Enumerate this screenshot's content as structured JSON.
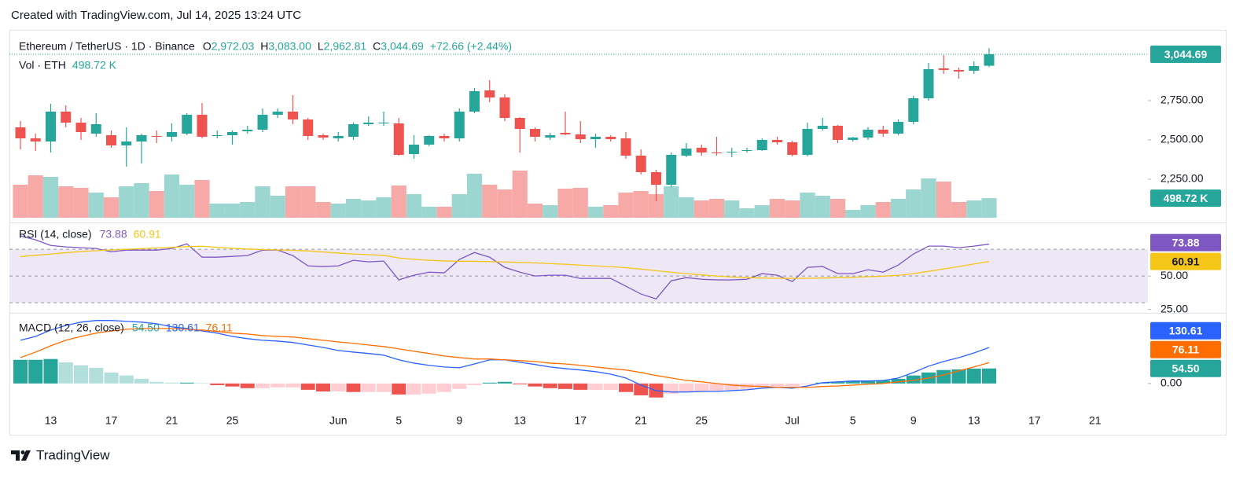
{
  "header": {
    "created": "Created with TradingView.com, Jul 14, 2025 13:24 UTC",
    "brand": "TradingView"
  },
  "chart_data": [
    {
      "type": "candlestick",
      "title": "Ethereum / TetherUS · 1D · Binance",
      "ohlc_keys": [
        "O",
        "H",
        "L",
        "C"
      ],
      "change": "+72.66 (+2.44%)",
      "volume_title": "Vol · ETH",
      "categories": [
        null,
        null,
        "13",
        null,
        null,
        null,
        "17",
        null,
        null,
        null,
        "21",
        null,
        null,
        null,
        "25",
        null,
        null,
        null,
        null,
        null,
        null,
        "Jun",
        null,
        null,
        null,
        "5",
        null,
        null,
        null,
        "9",
        null,
        null,
        null,
        "13",
        null,
        null,
        null,
        "17",
        null,
        null,
        null,
        "21",
        null,
        null,
        null,
        "25",
        null,
        null,
        null,
        null,
        null,
        "Jul",
        null,
        null,
        null,
        "5",
        null,
        null,
        null,
        "9",
        null,
        null,
        null,
        "13",
        null,
        null,
        null,
        "17",
        null,
        null,
        null,
        "21",
        null,
        null,
        null
      ],
      "open": {
        "values": [
          2580,
          2510,
          2490,
          2680,
          2610,
          2540,
          2530,
          2465,
          2490,
          2525,
          2520,
          2540,
          2660,
          2525,
          2530,
          2555,
          2565,
          2660,
          2680,
          2630,
          2530,
          2510,
          2520,
          2600,
          2605,
          2605,
          2410,
          2470,
          2525,
          2510,
          2680,
          2815,
          2770,
          2640,
          2570,
          2515,
          2545,
          2535,
          2505,
          2520,
          2510,
          2400,
          2295,
          2215,
          2400,
          2450,
          2420,
          2420,
          2430,
          2435,
          2500,
          2485,
          2405,
          2570,
          2590,
          2500,
          2515,
          2565,
          2540,
          2615,
          2765,
          2955,
          2945,
          2940,
          2972.03,
          null,
          null,
          null,
          null,
          null,
          null,
          null,
          null,
          null,
          null
        ],
        "value_labels": {
          "64": "2,972.03"
        }
      },
      "high": {
        "values": [
          2620,
          2540,
          2730,
          2720,
          2640,
          2670,
          2560,
          2580,
          2540,
          2560,
          2605,
          2670,
          2735,
          2560,
          2560,
          2590,
          2700,
          2700,
          2785,
          2640,
          2540,
          2550,
          2610,
          2650,
          2680,
          2640,
          2530,
          2530,
          2540,
          2700,
          2830,
          2880,
          2790,
          2645,
          2580,
          2545,
          2680,
          2620,
          2540,
          2530,
          2550,
          2440,
          2310,
          2420,
          2480,
          2470,
          2520,
          2450,
          2450,
          2510,
          2520,
          2495,
          2610,
          2640,
          2595,
          2520,
          2580,
          2590,
          2630,
          2780,
          2990,
          3040,
          2960,
          3000,
          3083,
          null,
          null,
          null,
          null,
          null,
          null,
          null,
          null,
          null,
          null
        ],
        "value_labels": {
          "64": "3,083.00"
        }
      },
      "low": {
        "values": [
          2440,
          2430,
          2420,
          2580,
          2500,
          2520,
          2450,
          2330,
          2350,
          2480,
          2490,
          2530,
          2510,
          2510,
          2470,
          2540,
          2550,
          2640,
          2600,
          2500,
          2500,
          2490,
          2500,
          2590,
          2590,
          2400,
          2380,
          2460,
          2490,
          2490,
          2670,
          2740,
          2620,
          2420,
          2490,
          2500,
          2530,
          2480,
          2450,
          2490,
          2380,
          2280,
          2110,
          2200,
          2390,
          2400,
          2400,
          2390,
          2420,
          2430,
          2470,
          2395,
          2395,
          2560,
          2480,
          2490,
          2500,
          2520,
          2530,
          2600,
          2750,
          2920,
          2890,
          2920,
          2962.81,
          null,
          null,
          null,
          null,
          null,
          null,
          null,
          null,
          null,
          null
        ],
        "value_labels": {
          "64": "2,962.81"
        }
      },
      "close": {
        "values": [
          2510,
          2490,
          2680,
          2610,
          2550,
          2600,
          2465,
          2490,
          2530,
          2520,
          2550,
          2660,
          2520,
          2530,
          2550,
          2565,
          2660,
          2680,
          2630,
          2525,
          2515,
          2525,
          2600,
          2610,
          2610,
          2405,
          2470,
          2525,
          2510,
          2680,
          2810,
          2770,
          2640,
          2570,
          2520,
          2530,
          2535,
          2505,
          2520,
          2505,
          2400,
          2295,
          2215,
          2405,
          2445,
          2420,
          2415,
          2425,
          2435,
          2500,
          2485,
          2405,
          2570,
          2590,
          2500,
          2515,
          2565,
          2540,
          2615,
          2765,
          2950,
          2945,
          2935,
          2970,
          3044.69,
          null,
          null,
          null,
          null,
          null,
          null,
          null,
          null,
          null,
          null
        ],
        "value_labels": {
          "64": "3,044.69"
        }
      },
      "volume": {
        "values": [
          840000,
          1080000,
          1040000,
          800000,
          760000,
          640000,
          520000,
          800000,
          880000,
          680000,
          1100000,
          840000,
          960000,
          360000,
          360000,
          400000,
          800000,
          560000,
          800000,
          800000,
          400000,
          360000,
          480000,
          440000,
          520000,
          820000,
          600000,
          280000,
          280000,
          600000,
          1120000,
          840000,
          720000,
          1200000,
          360000,
          320000,
          740000,
          760000,
          280000,
          320000,
          640000,
          680000,
          600000,
          800000,
          520000,
          440000,
          480000,
          440000,
          240000,
          320000,
          480000,
          440000,
          640000,
          560000,
          480000,
          200000,
          320000,
          400000,
          480000,
          720000,
          1000000,
          920000,
          400000,
          440000,
          498720,
          null,
          null,
          null,
          null,
          null,
          null,
          null,
          null,
          null,
          null
        ],
        "value_labels": {
          "64": "498.72 K"
        }
      },
      "ylim": [
        2005,
        3190
      ],
      "yticks": [
        {
          "value": 2250,
          "label": "2,250.00"
        },
        {
          "value": 2500,
          "label": "2,500.00"
        },
        {
          "value": 2750,
          "label": "2,750.00"
        }
      ],
      "up_color": "#26a69a",
      "down_color": "#ef5350",
      "volume_up_color": "#9cd6d0",
      "volume_down_color": "#f7a9a7"
    },
    {
      "type": "line",
      "title": "RSI (14, close)",
      "series": [
        {
          "color": "#7e57c2",
          "values": [
            80,
            77.1,
            72.9,
            71.8,
            71.2,
            70.6,
            68.2,
            69.4,
            69.4,
            69.4,
            70.6,
            74.1,
            64.1,
            64.1,
            64.7,
            65.3,
            69.4,
            69.4,
            65.3,
            57.6,
            57.1,
            57.6,
            61.8,
            60.6,
            61.2,
            47.1,
            50.6,
            52.9,
            52.4,
            62.4,
            67.6,
            64.1,
            56.5,
            52.9,
            50.0,
            50.6,
            50.6,
            48.2,
            48.2,
            48.2,
            42.4,
            36.5,
            32.9,
            46.5,
            48.8,
            47.6,
            47.1,
            47.1,
            47.6,
            51.8,
            50.6,
            45.9,
            56.5,
            57.1,
            51.8,
            51.8,
            54.7,
            52.9,
            58.2,
            66.5,
            72.4,
            72.4,
            71.2,
            72.4,
            73.88,
            null,
            null,
            null,
            null,
            null,
            null,
            null,
            null,
            null,
            null
          ]
        },
        {
          "color": "#f5c518",
          "values": [
            64.5,
            65.5,
            66.5,
            67.5,
            68.3,
            69,
            69.5,
            70,
            70.5,
            71,
            71.5,
            72,
            72.3,
            71.5,
            70.8,
            70.2,
            69.8,
            69.5,
            69.2,
            68.8,
            68,
            67.2,
            66.5,
            66,
            65.5,
            63.5,
            62.5,
            61.8,
            61.3,
            61,
            61,
            60.8,
            60.5,
            60.2,
            59.8,
            59.3,
            58.8,
            58.2,
            57.6,
            57,
            56.2,
            55.2,
            54,
            52.8,
            51.8,
            50.8,
            50,
            49.3,
            48.8,
            48.5,
            48.3,
            48.2,
            48.3,
            48.5,
            48.8,
            49.1,
            49.5,
            49.9,
            50.5,
            51.8,
            53.5,
            55.3,
            57.1,
            59,
            60.91,
            null,
            null,
            null,
            null,
            null,
            null,
            null,
            null,
            null,
            null
          ]
        }
      ],
      "ylim": [
        23,
        86
      ],
      "yticks": [
        {
          "value": 25,
          "label": "25.00"
        },
        {
          "value": 50,
          "label": "50.00"
        }
      ],
      "levels": [
        70,
        50,
        30
      ],
      "band": [
        30,
        70
      ],
      "band_color": "#ede7f6"
    },
    {
      "type": "line",
      "title": "MACD (12, 26, close)",
      "series": [
        {
          "style": "histogram",
          "color": "#26a69a",
          "fade_up_color": "#b2dfdb",
          "down_color": "#ef5350",
          "fade_down_color": "#ffcdd2",
          "values": [
            86,
            86,
            89,
            77,
            66,
            57,
            40,
            29,
            17,
            6,
            3,
            3,
            1,
            -6,
            -11,
            -17,
            -17,
            -14,
            -14,
            -23,
            -29,
            -29,
            -31,
            -31,
            -31,
            -40,
            -40,
            -37,
            -31,
            -20,
            -6,
            3,
            6,
            -3,
            -11,
            -17,
            -20,
            -23,
            -23,
            -23,
            -31,
            -43,
            -51,
            -37,
            -31,
            -29,
            -26,
            -23,
            -20,
            -14,
            -11,
            -11,
            -3,
            3,
            6,
            9,
            11,
            11,
            17,
            29,
            40,
            49,
            51,
            54,
            54.5,
            null,
            null,
            null,
            null,
            null,
            null,
            null,
            null,
            null,
            null
          ],
          "value_labels": {
            "64": "54.50"
          }
        },
        {
          "color": "#2962ff",
          "values": [
            157,
            171,
            194,
            211,
            223,
            229,
            229,
            226,
            223,
            217,
            206,
            200,
            191,
            183,
            171,
            163,
            157,
            154,
            149,
            140,
            131,
            120,
            114,
            109,
            103,
            86,
            74,
            66,
            60,
            57,
            71,
            86,
            86,
            77,
            69,
            60,
            54,
            49,
            43,
            34,
            20,
            -6,
            -26,
            -31,
            -31,
            -29,
            -29,
            -26,
            -23,
            -17,
            -14,
            -17,
            -9,
            3,
            6,
            9,
            9,
            11,
            20,
            40,
            63,
            80,
            94,
            111,
            130.61,
            null,
            null,
            null,
            null,
            null,
            null,
            null,
            null,
            null,
            null
          ]
        },
        {
          "color": "#ff6d00",
          "values": [
            94,
            114,
            137,
            157,
            171,
            183,
            191,
            197,
            200,
            200,
            200,
            197,
            194,
            189,
            183,
            180,
            174,
            171,
            169,
            163,
            157,
            151,
            146,
            140,
            134,
            126,
            117,
            109,
            100,
            94,
            89,
            89,
            86,
            83,
            80,
            74,
            71,
            66,
            60,
            54,
            49,
            40,
            29,
            20,
            11,
            6,
            0,
            -6,
            -9,
            -11,
            -14,
            -14,
            -14,
            -11,
            -9,
            -6,
            -3,
            0,
            6,
            11,
            20,
            31,
            46,
            60,
            76.11,
            null,
            null,
            null,
            null,
            null,
            null,
            null,
            null,
            null,
            null
          ]
        }
      ],
      "ylim": [
        -69,
        251
      ],
      "yticks": [
        {
          "value": 0,
          "label": "0.00"
        }
      ]
    }
  ]
}
